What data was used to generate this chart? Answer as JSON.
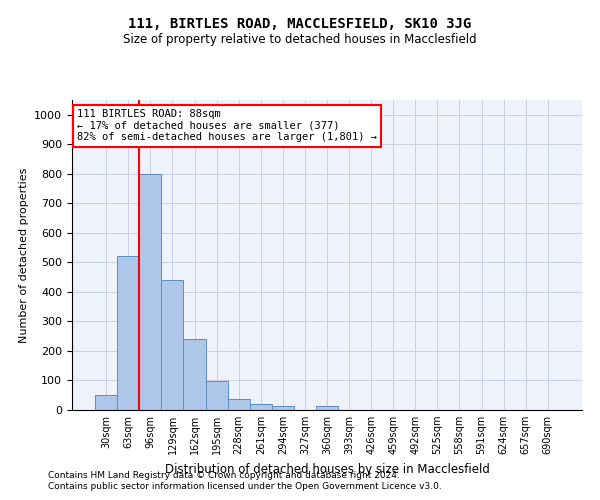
{
  "title": "111, BIRTLES ROAD, MACCLESFIELD, SK10 3JG",
  "subtitle": "Size of property relative to detached houses in Macclesfield",
  "xlabel": "Distribution of detached houses by size in Macclesfield",
  "ylabel": "Number of detached properties",
  "bar_labels": [
    "30sqm",
    "63sqm",
    "96sqm",
    "129sqm",
    "162sqm",
    "195sqm",
    "228sqm",
    "261sqm",
    "294sqm",
    "327sqm",
    "360sqm",
    "393sqm",
    "426sqm",
    "459sqm",
    "492sqm",
    "525sqm",
    "558sqm",
    "591sqm",
    "624sqm",
    "657sqm",
    "690sqm"
  ],
  "bar_values": [
    50,
    520,
    800,
    440,
    240,
    97,
    37,
    20,
    15,
    0,
    12,
    0,
    0,
    0,
    0,
    0,
    0,
    0,
    0,
    0,
    0
  ],
  "bar_color": "#aec6e8",
  "bar_edge_color": "#5a8fc2",
  "vline_x": 1.5,
  "vline_color": "red",
  "annotation_text": "111 BIRTLES ROAD: 88sqm\n← 17% of detached houses are smaller (377)\n82% of semi-detached houses are larger (1,801) →",
  "annotation_box_color": "white",
  "annotation_box_edge": "red",
  "ylim": [
    0,
    1050
  ],
  "yticks": [
    0,
    100,
    200,
    300,
    400,
    500,
    600,
    700,
    800,
    900,
    1000
  ],
  "footnote1": "Contains HM Land Registry data © Crown copyright and database right 2024.",
  "footnote2": "Contains public sector information licensed under the Open Government Licence v3.0.",
  "bg_color": "#eef2fb",
  "grid_color": "#c8d0e0"
}
